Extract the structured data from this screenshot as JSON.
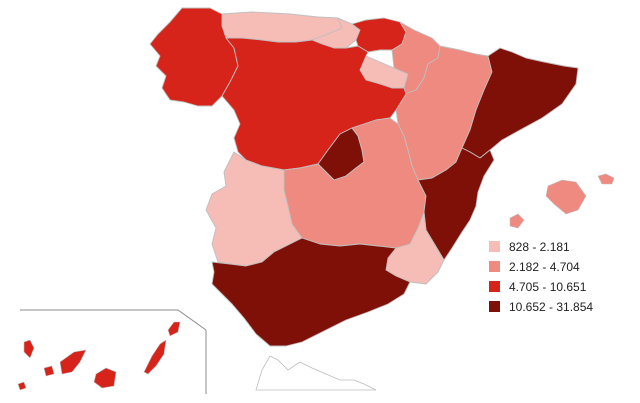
{
  "colors": {
    "class1": "#f6bcb6",
    "class2": "#ee8a80",
    "class3": "#d7241b",
    "class4": "#7e1008"
  },
  "legend": {
    "items": [
      {
        "label": "828 - 2.181",
        "color_key": "class1"
      },
      {
        "label": "2.182 - 4.704",
        "color_key": "class2"
      },
      {
        "label": "4.705 - 10.651",
        "color_key": "class3"
      },
      {
        "label": "10.652 - 31.854",
        "color_key": "class4"
      }
    ]
  },
  "regions": [
    {
      "id": "galicia",
      "class": "class3"
    },
    {
      "id": "asturias",
      "class": "class1"
    },
    {
      "id": "cantabria",
      "class": "class1"
    },
    {
      "id": "pais-vasco",
      "class": "class3"
    },
    {
      "id": "navarra",
      "class": "class2"
    },
    {
      "id": "la-rioja",
      "class": "class1"
    },
    {
      "id": "aragon",
      "class": "class2"
    },
    {
      "id": "cataluna",
      "class": "class4"
    },
    {
      "id": "castilla-y-leon",
      "class": "class3"
    },
    {
      "id": "madrid",
      "class": "class4"
    },
    {
      "id": "castilla-la-mancha",
      "class": "class2"
    },
    {
      "id": "extremadura",
      "class": "class1"
    },
    {
      "id": "comunidad-valenciana",
      "class": "class4"
    },
    {
      "id": "murcia",
      "class": "class1"
    },
    {
      "id": "andalucia",
      "class": "class4"
    },
    {
      "id": "baleares",
      "class": "class2"
    },
    {
      "id": "canarias",
      "class": "class3"
    }
  ]
}
